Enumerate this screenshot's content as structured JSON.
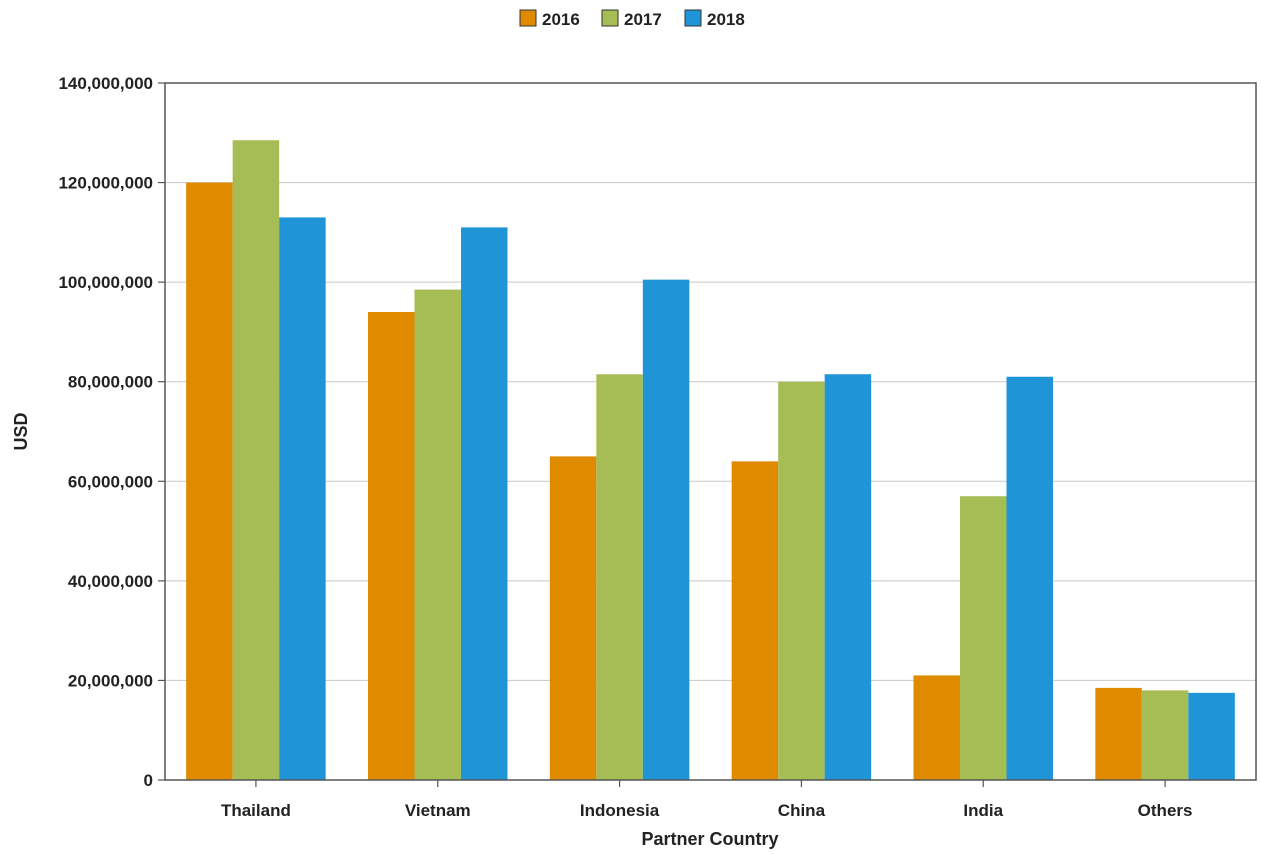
{
  "chart_data": {
    "type": "bar",
    "xlabel": "Partner Country",
    "ylabel": "USD",
    "ylim": [
      0,
      140000000
    ],
    "yticks": [
      0,
      20000000,
      40000000,
      60000000,
      80000000,
      100000000,
      120000000,
      140000000
    ],
    "ytick_labels": [
      "0",
      "20,000,000",
      "40,000,000",
      "60,000,000",
      "80,000,000",
      "100,000,000",
      "120,000,000",
      "140,000,000"
    ],
    "categories": [
      "Thailand",
      "Vietnam",
      "Indonesia",
      "China",
      "India",
      "Others"
    ],
    "series": [
      {
        "name": "2016",
        "color": "#e08a00",
        "values": [
          120000000,
          94000000,
          65000000,
          64000000,
          21000000,
          18500000
        ]
      },
      {
        "name": "2017",
        "color": "#a6bd55",
        "values": [
          128500000,
          98500000,
          81500000,
          80000000,
          57000000,
          18000000
        ]
      },
      {
        "name": "2018",
        "color": "#1f94d6",
        "values": [
          113000000,
          111000000,
          100500000,
          81500000,
          81000000,
          17500000
        ]
      }
    ],
    "grid": true,
    "legend_position": "top-center"
  }
}
